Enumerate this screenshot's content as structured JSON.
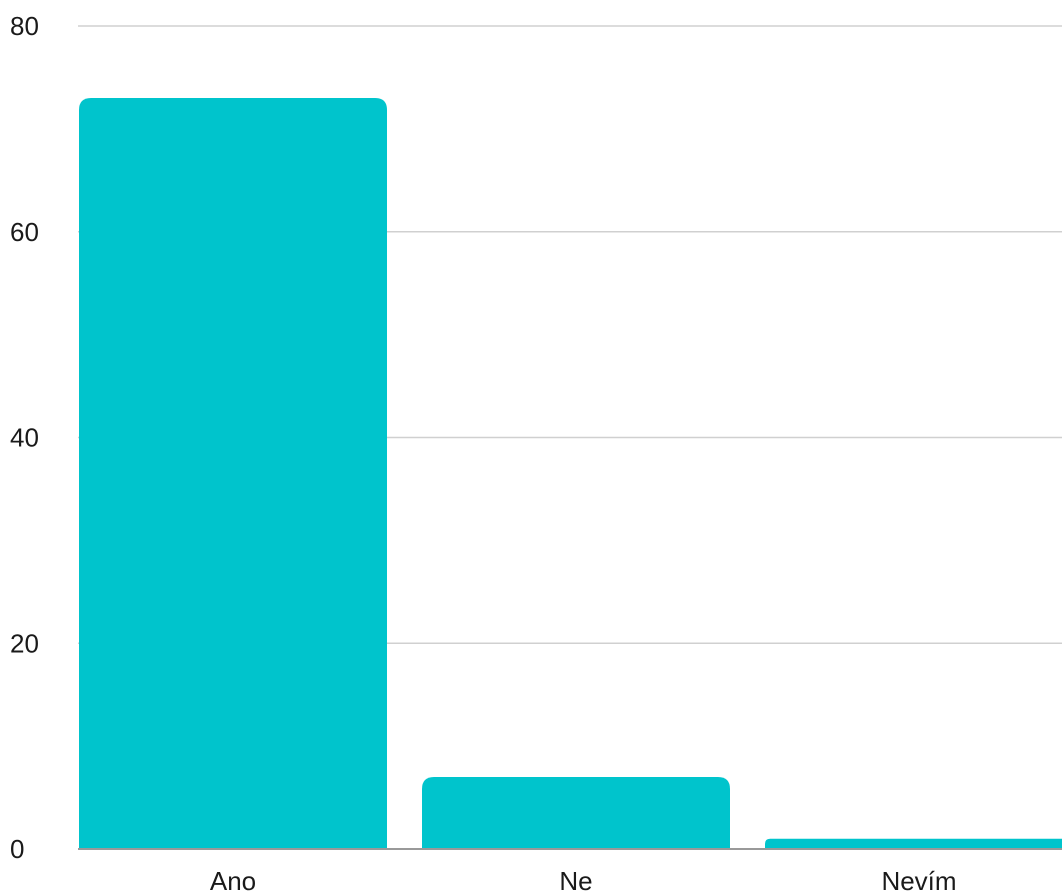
{
  "chart_data": {
    "type": "bar",
    "categories": [
      "Ano",
      "Ne",
      "Nevím"
    ],
    "values": [
      73,
      7,
      1
    ],
    "title": "",
    "xlabel": "",
    "ylabel": "",
    "ylim": [
      0,
      80
    ],
    "yticks": [
      "0",
      "20",
      "40",
      "60",
      "80"
    ],
    "grid": true,
    "legend": "none",
    "bar_color": "#00C4CC",
    "grid_color": "#d0d0d0",
    "baseline_color": "#999999"
  }
}
